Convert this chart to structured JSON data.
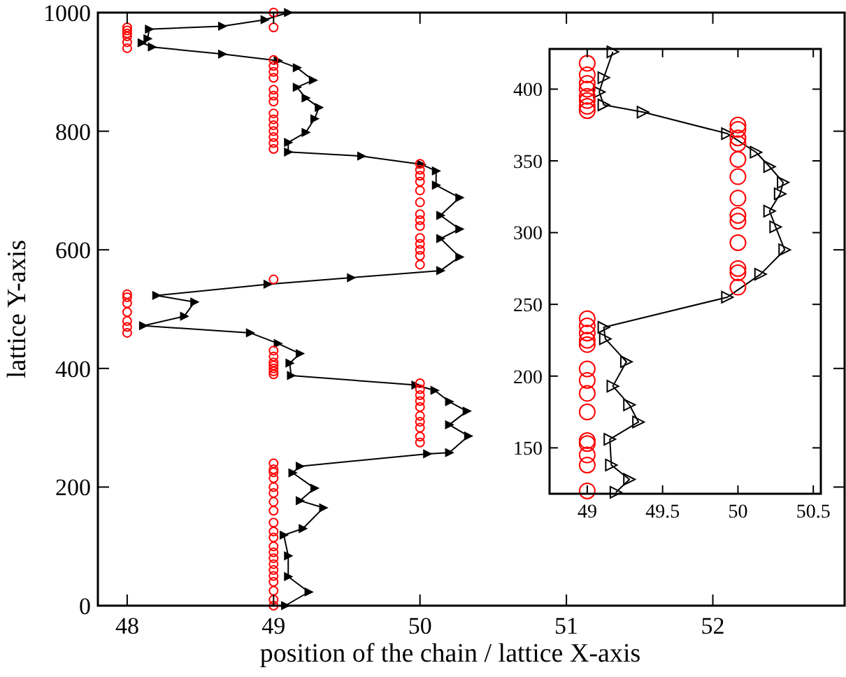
{
  "chart_data": [
    {
      "type": "line",
      "xlabel": "position of the chain / lattice X-axis",
      "ylabel": "lattice Y-axis",
      "xlim": [
        47.8,
        52.9
      ],
      "ylim": [
        0,
        1000
      ],
      "xticks": [
        48,
        49,
        50,
        51,
        52
      ],
      "yticks": [
        0,
        200,
        400,
        600,
        800,
        1000
      ],
      "grid": false,
      "series": [
        {
          "marker": "triangle",
          "color": "#000000",
          "x": [
            49.08,
            49.24,
            49.1,
            49.1,
            49.07,
            49.2,
            49.34,
            49.18,
            49.28,
            49.13,
            49.18,
            50.05,
            50.2,
            50.33,
            50.2,
            50.32,
            50.2,
            50.1,
            49.97,
            49.12,
            49.11,
            49.18,
            49.03,
            48.84,
            48.11,
            48.39,
            48.46,
            48.2,
            48.96,
            49.53,
            50.14,
            50.27,
            50.14,
            50.27,
            50.14,
            50.27,
            50.11,
            50.11,
            50.01,
            49.6,
            49.1,
            49.1,
            49.22,
            49.28,
            49.31,
            49.22,
            49.16,
            49.27,
            49.16,
            49.03,
            48.65,
            48.17,
            48.1,
            48.14,
            48.15,
            48.65,
            48.94,
            49.1
          ],
          "values": [
            0,
            23,
            49,
            84,
            119,
            130,
            165,
            177,
            198,
            224,
            235,
            256,
            258,
            286,
            305,
            328,
            344,
            363,
            372,
            388,
            409,
            425,
            442,
            460,
            472,
            488,
            512,
            523,
            542,
            553,
            565,
            588,
            619,
            635,
            658,
            688,
            709,
            733,
            744,
            758,
            765,
            781,
            798,
            821,
            840,
            856,
            874,
            886,
            907,
            919,
            930,
            942,
            949,
            956,
            972,
            977,
            988,
            1000
          ]
        },
        {
          "type": "scatter",
          "marker": "circle",
          "color": "#ff0000",
          "x": [
            48,
            48,
            48,
            48,
            48,
            48,
            48,
            48,
            48,
            48,
            48,
            48,
            48,
            49,
            49,
            49,
            49,
            49,
            49,
            49,
            49,
            49,
            49,
            49,
            49,
            49,
            49,
            49,
            49,
            49,
            49,
            49,
            49,
            49,
            49,
            49,
            49,
            49,
            49,
            49,
            49,
            49,
            49,
            49,
            49,
            49,
            49,
            49,
            49,
            49,
            49,
            49,
            49,
            49,
            49,
            49,
            49,
            49,
            50,
            50,
            50,
            50,
            50,
            50,
            50,
            50,
            50,
            50,
            50,
            50,
            50,
            50,
            50,
            50,
            50,
            50,
            50,
            50,
            50,
            50,
            50,
            50
          ],
          "values": [
            940,
            950,
            960,
            965,
            970,
            975,
            460,
            470,
            480,
            495,
            510,
            520,
            525,
            1000,
            975,
            550,
            920,
            910,
            900,
            890,
            870,
            860,
            850,
            830,
            820,
            810,
            800,
            790,
            780,
            770,
            430,
            420,
            410,
            405,
            400,
            395,
            390,
            0,
            10,
            25,
            40,
            50,
            60,
            70,
            80,
            90,
            100,
            115,
            125,
            140,
            160,
            175,
            190,
            200,
            215,
            225,
            230,
            240,
            745,
            735,
            725,
            715,
            700,
            680,
            660,
            650,
            640,
            620,
            610,
            600,
            590,
            575,
            375,
            365,
            355,
            345,
            335,
            320,
            310,
            300,
            285,
            275
          ]
        }
      ]
    },
    {
      "type": "line",
      "xlim": [
        48.75,
        50.55
      ],
      "ylim": [
        118,
        428
      ],
      "xticks": [
        49,
        49.5,
        50,
        50.5
      ],
      "yticks": [
        150,
        200,
        250,
        300,
        350,
        400
      ],
      "grid": false,
      "series": [
        {
          "marker": "triangle",
          "color": "#000000",
          "x": [
            49.19,
            49.28,
            49.16,
            49.15,
            49.34,
            49.28,
            49.17,
            49.26,
            49.12,
            49.11,
            49.93,
            50.15,
            50.31,
            50.25,
            50.21,
            50.28,
            50.3,
            50.21,
            50.12,
            49.93,
            49.37,
            49.11,
            49.08,
            49.11,
            49.17
          ],
          "values": [
            119,
            128,
            138,
            156,
            168,
            180,
            193,
            210,
            226,
            234,
            255,
            271,
            288,
            304,
            315,
            327,
            335,
            346,
            356,
            369,
            384,
            389,
            398,
            408,
            426
          ]
        },
        {
          "type": "scatter",
          "marker": "circle",
          "color": "#ff0000",
          "x": [
            49,
            49,
            49,
            49,
            49,
            49,
            49,
            49,
            49,
            49,
            49,
            49,
            49,
            49,
            49,
            49,
            49,
            49,
            49,
            49,
            49,
            49,
            50,
            50,
            50,
            50,
            50,
            50,
            50,
            50,
            50,
            50,
            50,
            50,
            50
          ],
          "values": [
            120,
            138,
            145,
            153,
            155,
            175,
            188,
            197,
            205,
            222,
            225,
            230,
            235,
            240,
            385,
            388,
            392,
            395,
            400,
            404,
            410,
            418,
            262,
            272,
            275,
            293,
            308,
            312,
            324,
            339,
            351,
            362,
            366,
            372,
            375
          ]
        }
      ]
    }
  ]
}
